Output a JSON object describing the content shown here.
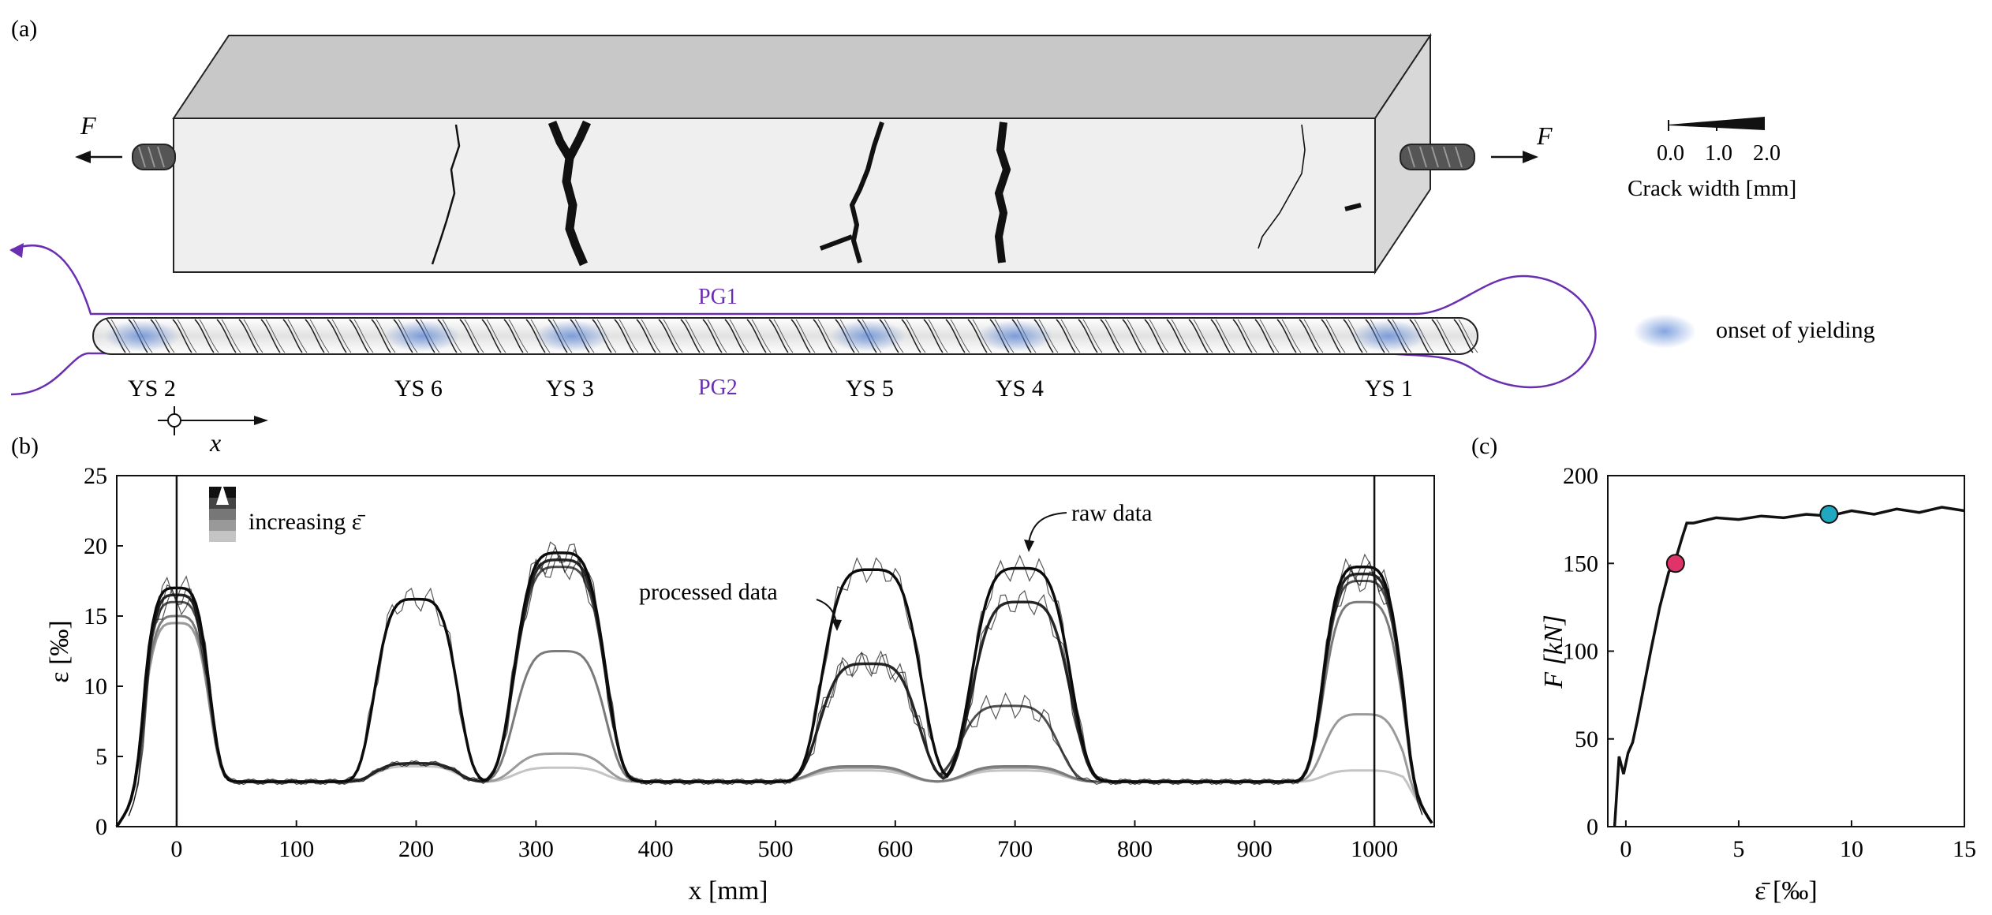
{
  "panel_labels": {
    "a": "(a)",
    "b": "(b)",
    "c": "(c)"
  },
  "panel_a": {
    "force_label_left": "F",
    "force_label_right": "F",
    "crack_legend": {
      "ticks": [
        "0.0",
        "1.0",
        "2.0"
      ],
      "title": "Crack width [mm]"
    },
    "yield_legend": "onset of yielding",
    "fiber_labels": [
      "PG1",
      "PG2"
    ],
    "yield_sites": [
      "YS 2",
      "YS 6",
      "YS 3",
      "YS 5",
      "YS 4",
      "YS 1"
    ],
    "axis_label": "x",
    "colors": {
      "fiber": "#6a2fb0",
      "yield": "#5b86d6",
      "concrete_front": "#efefef",
      "concrete_top": "#c8c8c8",
      "concrete_side": "#d8d8d8"
    }
  },
  "chart_data": [
    {
      "type": "line",
      "panel": "(b)",
      "xlabel": "x [mm]",
      "ylabel": "ε [‰]",
      "xlim": [
        -50,
        1050
      ],
      "ylim": [
        0,
        25
      ],
      "xticks": [
        0,
        100,
        200,
        300,
        400,
        500,
        600,
        700,
        800,
        900,
        1000
      ],
      "yticks": [
        0,
        5,
        10,
        15,
        20,
        25
      ],
      "legend": "increasing ε̄",
      "annotations": [
        "raw data",
        "processed data"
      ],
      "series_description": "processed strain profiles at increasing load steps (light to dark)",
      "series": [
        {
          "name": "step 1",
          "color": "#c4c4c4",
          "peaks": [
            [
              0,
              14.5
            ],
            [
              200,
              4.3
            ],
            [
              320,
              4.2
            ],
            [
              570,
              4.0
            ],
            [
              700,
              4.0
            ],
            [
              990,
              4.0
            ]
          ]
        },
        {
          "name": "step 2",
          "color": "#9a9a9a",
          "peaks": [
            [
              0,
              14.5
            ],
            [
              200,
              4.5
            ],
            [
              320,
              5.2
            ],
            [
              570,
              4.2
            ],
            [
              700,
              4.2
            ],
            [
              990,
              8.0
            ]
          ]
        },
        {
          "name": "step 3",
          "color": "#7a7a7a",
          "peaks": [
            [
              0,
              15.0
            ],
            [
              200,
              4.5
            ],
            [
              320,
              12.5
            ],
            [
              570,
              4.3
            ],
            [
              700,
              4.3
            ],
            [
              990,
              16.0
            ]
          ]
        },
        {
          "name": "step 4",
          "color": "#4f4f4f",
          "peaks": [
            [
              0,
              16.0
            ],
            [
              200,
              4.5
            ],
            [
              320,
              18.5
            ],
            [
              578,
              11.6
            ],
            [
              695,
              8.6
            ],
            [
              990,
              17.5
            ]
          ]
        },
        {
          "name": "step 5",
          "color": "#262626",
          "peaks": [
            [
              0,
              16.5
            ],
            [
              200,
              4.5
            ],
            [
              320,
              19.0
            ],
            [
              578,
              11.6
            ],
            [
              705,
              16.0
            ],
            [
              990,
              18.0
            ]
          ]
        },
        {
          "name": "step 6",
          "color": "#0a0a0a",
          "peaks": [
            [
              0,
              17.0
            ],
            [
              200,
              16.2
            ],
            [
              320,
              19.5
            ],
            [
              580,
              18.3
            ],
            [
              705,
              18.4
            ],
            [
              990,
              18.5
            ]
          ]
        }
      ]
    },
    {
      "type": "line",
      "panel": "(c)",
      "xlabel": "ε̄ [‰]",
      "ylabel": "F [kN]",
      "xlim": [
        -0.8,
        15
      ],
      "ylim": [
        0,
        200
      ],
      "xticks": [
        0,
        5,
        10,
        15
      ],
      "yticks": [
        0,
        50,
        100,
        150,
        200
      ],
      "x": [
        -0.5,
        -0.3,
        -0.1,
        0.1,
        0.3,
        0.5,
        0.8,
        1.1,
        1.5,
        1.9,
        2.2,
        2.5,
        2.7,
        3.0,
        4.0,
        5.0,
        6.0,
        7.0,
        8.0,
        9.0,
        10.0,
        11.0,
        12.0,
        13.0,
        14.0,
        15.0
      ],
      "y": [
        0,
        40,
        30,
        42,
        48,
        60,
        80,
        100,
        125,
        145,
        152,
        165,
        173,
        175,
        176,
        177,
        177,
        178,
        178,
        179,
        180,
        180,
        181,
        181,
        182,
        182
      ],
      "markers": [
        {
          "x": 2.2,
          "y": 150,
          "color": "#e0336a"
        },
        {
          "x": 9.0,
          "y": 178,
          "color": "#1fa8c0"
        }
      ]
    }
  ]
}
